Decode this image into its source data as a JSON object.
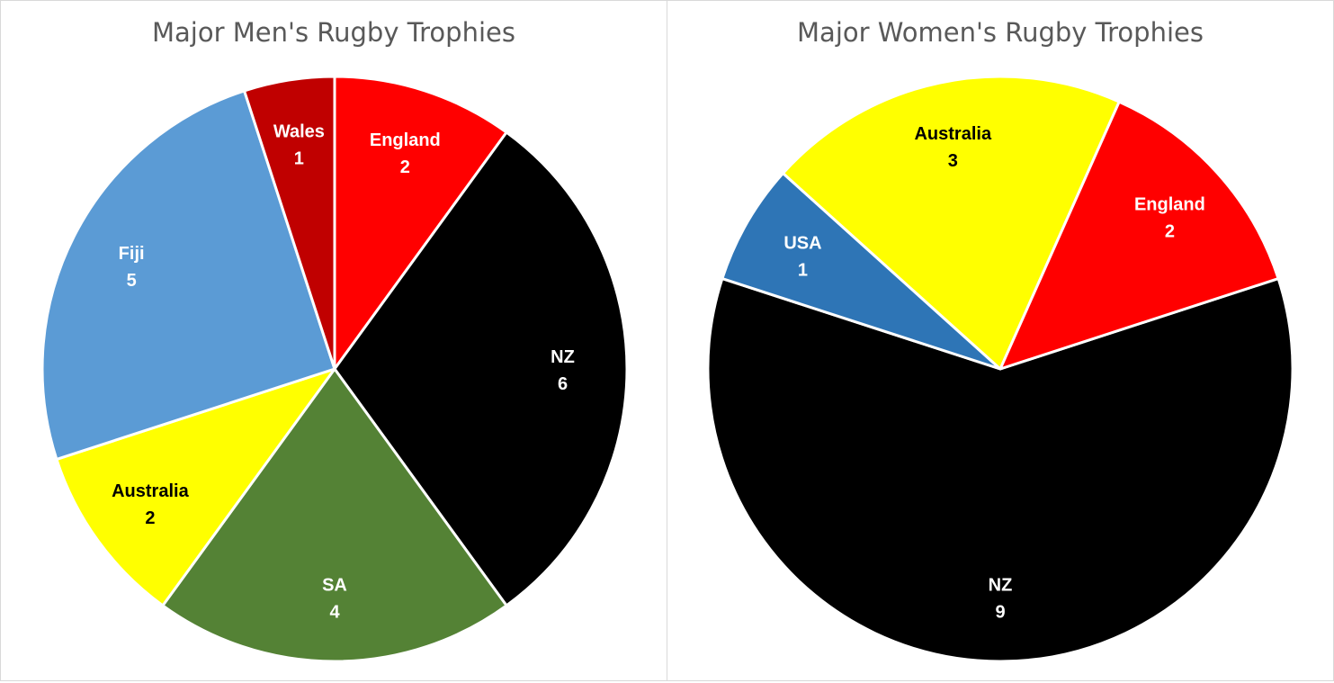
{
  "chart_data": [
    {
      "type": "pie",
      "title": "Major Men's Rugby Trophies",
      "slices": [
        {
          "label": "England",
          "value": 2,
          "color": "#FF0000",
          "text_color": "#FFFFFF"
        },
        {
          "label": "NZ",
          "value": 6,
          "color": "#000000",
          "text_color": "#FFFFFF"
        },
        {
          "label": "SA",
          "value": 4,
          "color": "#548235",
          "text_color": "#FFFFFF"
        },
        {
          "label": "Australia",
          "value": 2,
          "color": "#FFFF00",
          "text_color": "#000000"
        },
        {
          "label": "Fiji",
          "value": 5,
          "color": "#5B9BD5",
          "text_color": "#FFFFFF"
        },
        {
          "label": "Wales",
          "value": 1,
          "color": "#C00000",
          "text_color": "#FFFFFF"
        }
      ]
    },
    {
      "type": "pie",
      "title": "Major Women's Rugby Trophies",
      "slices": [
        {
          "label": "NZ",
          "value": 9,
          "color": "#000000",
          "text_color": "#FFFFFF"
        },
        {
          "label": "USA",
          "value": 1,
          "color": "#2E75B6",
          "text_color": "#FFFFFF"
        },
        {
          "label": "Australia",
          "value": 3,
          "color": "#FFFF00",
          "text_color": "#000000"
        },
        {
          "label": "England",
          "value": 2,
          "color": "#FF0000",
          "text_color": "#FFFFFF"
        }
      ]
    }
  ]
}
